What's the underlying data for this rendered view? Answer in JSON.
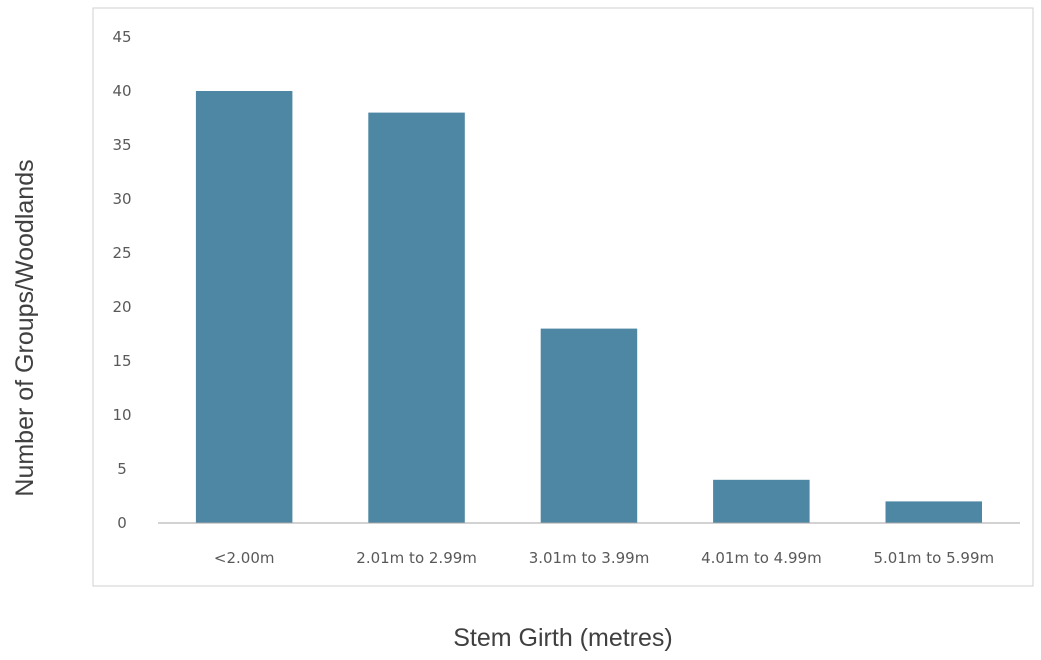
{
  "chart_data": {
    "type": "bar",
    "title": "",
    "xlabel": "Stem Girth (metres)",
    "ylabel": "Number of Groups/Woodlands",
    "categories": [
      "<2.00m",
      "2.01m to 2.99m",
      "3.01m to 3.99m",
      "4.01m to 4.99m",
      "5.01m to 5.99m"
    ],
    "values": [
      40,
      38,
      18,
      4,
      2
    ],
    "ylim": [
      0,
      45
    ],
    "yticks": [
      0,
      5,
      10,
      15,
      20,
      25,
      30,
      35,
      40,
      45
    ],
    "grid": false,
    "legend": "none",
    "colors": {
      "bar": "#4e87a3",
      "axis": "#a6a6a6",
      "frame": "#d0d0d0",
      "tick_text": "#595959",
      "title_text": "#404040"
    }
  }
}
